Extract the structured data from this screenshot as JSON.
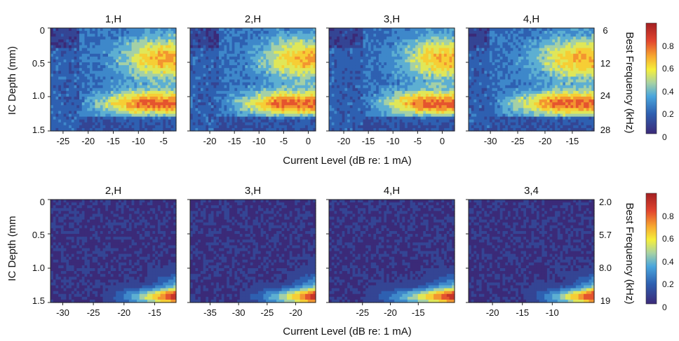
{
  "chart_data": [
    {
      "type": "heatmap",
      "row": "top",
      "ylabel": "IC Depth (mm)",
      "xlabel": "Current Level (dB re: 1 mA)",
      "ylim": [
        0,
        1.5
      ],
      "yticks": [
        "0",
        "0.5",
        "1.0",
        "1.5"
      ],
      "right_axis_label": "Best Frequency (kHz)",
      "right_axis_ticks": [
        "6",
        "12",
        "24",
        "28"
      ],
      "colorbar": {
        "ticks": [
          "0.8",
          "0.6",
          "0.4",
          "0.2",
          "0"
        ],
        "range": [
          0,
          0.9
        ]
      },
      "panels": [
        {
          "title": "1,H",
          "xlim": [
            -27.5,
            -2.5
          ],
          "xticks": [
            -25,
            -20,
            -15,
            -10,
            -5
          ],
          "onset": -22,
          "peak": 0.9
        },
        {
          "title": "2,H",
          "xlim": [
            -24,
            1.5
          ],
          "xticks": [
            -20,
            -15,
            -10,
            -5,
            0
          ],
          "onset": -18,
          "peak": 0.88
        },
        {
          "title": "3,H",
          "xlim": [
            -23,
            2.5
          ],
          "xticks": [
            -20,
            -15,
            -10,
            -5,
            0
          ],
          "onset": -16,
          "peak": 0.82
        },
        {
          "title": "4,H",
          "xlim": [
            -34,
            -11
          ],
          "xticks": [
            -30,
            -25,
            -20,
            -15
          ],
          "onset": -30,
          "peak": 0.85
        }
      ]
    },
    {
      "type": "heatmap",
      "row": "bottom",
      "ylabel": "IC Depth (mm",
      "xlabel": "Current Level (dB re: 1 mA)",
      "ylim": [
        0,
        1.5
      ],
      "yticks": [
        "0",
        "0.5",
        "1.0",
        "1.5"
      ],
      "right_axis_label": "Best Frequency (kHz)",
      "right_axis_ticks": [
        "2.0",
        "5.7",
        "8.0",
        "19"
      ],
      "colorbar": {
        "ticks": [
          "0.8",
          "0.6",
          "0.4",
          "0.2",
          "0"
        ],
        "range": [
          0,
          0.9
        ]
      },
      "panels": [
        {
          "title": "2,H",
          "xlim": [
            -32,
            -11.5
          ],
          "xticks": [
            -30,
            -25,
            -20,
            -15
          ],
          "onset": -24,
          "peak": 0.85
        },
        {
          "title": "3,H",
          "xlim": [
            -38.5,
            -16.5
          ],
          "xticks": [
            -35,
            -30,
            -25,
            -20
          ],
          "onset": -30,
          "peak": 0.88
        },
        {
          "title": "4,H",
          "xlim": [
            -31,
            -8.5
          ],
          "xticks": [
            -25,
            -20,
            -15
          ],
          "onset": -25,
          "peak": 0.85
        },
        {
          "title": "3,4",
          "xlim": [
            -24,
            -3
          ],
          "xticks": [
            -20,
            -15,
            -10
          ],
          "onset": -15,
          "peak": 0.8
        }
      ]
    }
  ]
}
